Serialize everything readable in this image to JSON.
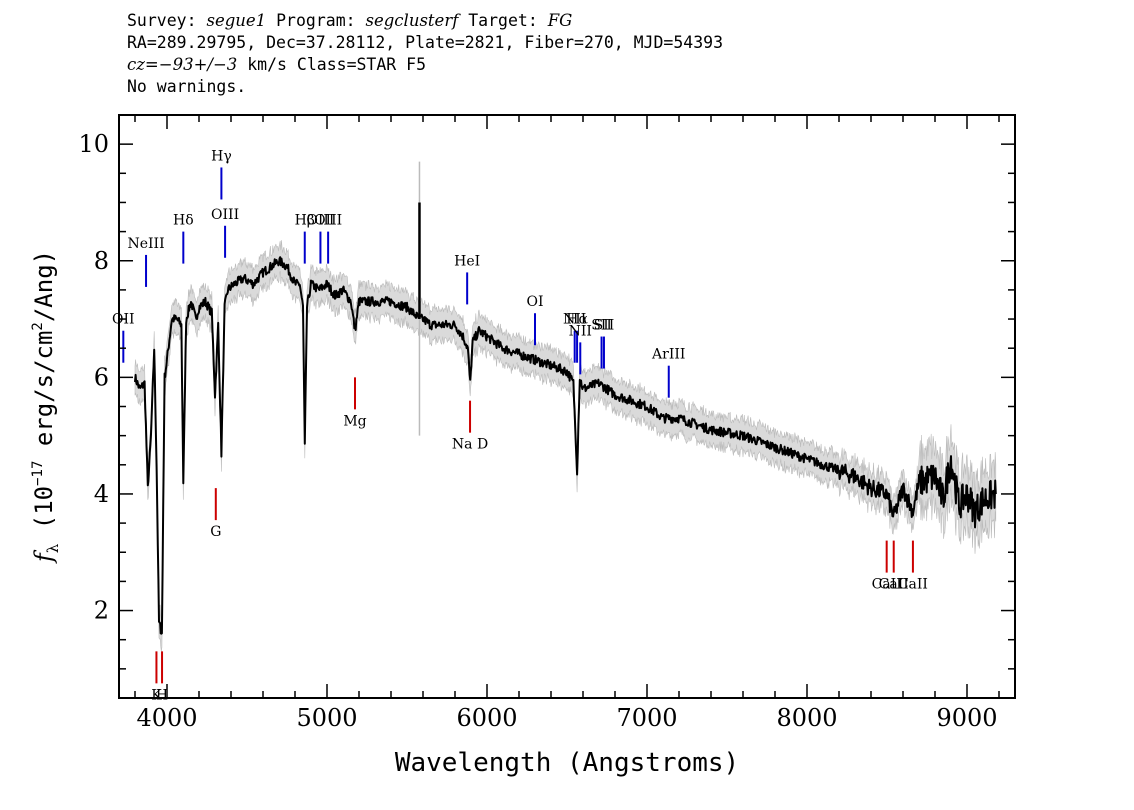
{
  "header": {
    "line1": {
      "survey_label": "Survey: ",
      "survey": "segue1",
      "program_label": " Program: ",
      "program": "segclusterf",
      "target_label": " Target: ",
      "target": "FG"
    },
    "line2": "RA=289.29795, Dec=37.28112, Plate=2821, Fiber=270, MJD=54393",
    "line3": {
      "cz": "cz=−93+/−3",
      "rest": " km/s Class=STAR F5"
    },
    "line4": "No warnings."
  },
  "chart_data": {
    "type": "line",
    "xlabel": "Wavelength (Angstroms)",
    "ylabel": "f_λ (10^-17 erg/s/cm^2/Ang)",
    "ylabel_parts": {
      "f": "f",
      "sub": "λ",
      "pre": " (10",
      "exp": "−17",
      "mid": " erg/s/cm",
      "exp2": "2",
      "post": "/Ang)"
    },
    "xlim": [
      3700,
      9300
    ],
    "ylim": [
      0.5,
      10.5
    ],
    "xticks": [
      4000,
      5000,
      6000,
      7000,
      8000,
      9000
    ],
    "yticks": [
      2,
      4,
      6,
      8,
      10
    ],
    "xtick_labels": [
      "4000",
      "5000",
      "6000",
      "7000",
      "8000",
      "9000"
    ],
    "ytick_labels": [
      "2",
      "4",
      "6",
      "8",
      "10"
    ],
    "grid": false,
    "series": [
      {
        "style": "flux",
        "color": "#000000",
        "error_color": "#bbbbbb",
        "x": [
          3800,
          3830,
          3860,
          3880,
          3900,
          3920,
          3935,
          3950,
          3968,
          3985,
          4000,
          4030,
          4060,
          4090,
          4102,
          4120,
          4150,
          4180,
          4200,
          4240,
          4280,
          4300,
          4320,
          4340,
          4360,
          4380,
          4420,
          4480,
          4540,
          4600,
          4650,
          4700,
          4750,
          4800,
          4830,
          4850,
          4861,
          4875,
          4900,
          4950,
          5000,
          5050,
          5100,
          5150,
          5175,
          5200,
          5250,
          5300,
          5400,
          5500,
          5580,
          5600,
          5650,
          5700,
          5800,
          5850,
          5880,
          5895,
          5910,
          5950,
          6000,
          6100,
          6200,
          6300,
          6400,
          6500,
          6540,
          6563,
          6580,
          6600,
          6700,
          6800,
          6900,
          7000,
          7100,
          7200,
          7400,
          7600,
          7800,
          8000,
          8200,
          8300,
          8400,
          8498,
          8542,
          8600,
          8662,
          8700,
          8800,
          8850,
          8900,
          8950,
          9000,
          9050,
          9100,
          9180
        ],
        "y": [
          6.0,
          5.8,
          5.9,
          4.1,
          5.0,
          6.5,
          4.5,
          1.8,
          1.6,
          6.0,
          6.3,
          7.0,
          7.0,
          6.9,
          4.2,
          7.0,
          7.3,
          7.0,
          7.2,
          7.3,
          7.1,
          5.7,
          6.9,
          4.7,
          7.2,
          7.5,
          7.6,
          7.7,
          7.6,
          7.8,
          7.9,
          8.0,
          7.9,
          7.6,
          7.6,
          7.2,
          4.8,
          7.2,
          7.6,
          7.5,
          7.6,
          7.4,
          7.5,
          7.3,
          6.8,
          7.3,
          7.3,
          7.3,
          7.3,
          7.2,
          7.0,
          7.0,
          6.9,
          6.9,
          6.9,
          6.7,
          6.5,
          5.9,
          6.6,
          6.8,
          6.7,
          6.5,
          6.4,
          6.3,
          6.2,
          6.1,
          5.9,
          4.4,
          6.0,
          5.8,
          5.9,
          5.7,
          5.6,
          5.5,
          5.3,
          5.3,
          5.1,
          5.0,
          4.8,
          4.6,
          4.4,
          4.3,
          4.1,
          4.0,
          3.6,
          4.1,
          3.7,
          4.2,
          4.3,
          3.9,
          4.6,
          3.8,
          4.0,
          3.7,
          3.9,
          4.0
        ]
      }
    ],
    "emission_lines": [
      {
        "label": "OII",
        "wavelength": 3727,
        "flux": 6.8
      },
      {
        "label": "NeIII",
        "wavelength": 3869,
        "flux": 8.1
      },
      {
        "label": "Hδ",
        "wavelength": 4102,
        "flux": 8.5
      },
      {
        "label": "Hγ",
        "wavelength": 4340,
        "flux": 9.6
      },
      {
        "label": "OIII",
        "wavelength": 4363,
        "flux": 8.6
      },
      {
        "label": "Hβ",
        "wavelength": 4861,
        "flux": 8.5
      },
      {
        "label": "OIII",
        "wavelength": 4959,
        "flux": 8.5
      },
      {
        "label": "OIII",
        "wavelength": 5007,
        "flux": 8.5
      },
      {
        "label": "HeI",
        "wavelength": 5876,
        "flux": 7.8
      },
      {
        "label": "OI",
        "wavelength": 6300,
        "flux": 7.1
      },
      {
        "label": "NII",
        "wavelength": 6548,
        "flux": 6.8
      },
      {
        "label": "Hα",
        "wavelength": 6563,
        "flux": 6.8
      },
      {
        "label": "NII",
        "wavelength": 6583,
        "flux": 6.6
      },
      {
        "label": "SII",
        "wavelength": 6716,
        "flux": 6.7
      },
      {
        "label": "SII",
        "wavelength": 6731,
        "flux": 6.7
      },
      {
        "label": "ArIII",
        "wavelength": 7136,
        "flux": 6.2
      }
    ],
    "absorption_lines": [
      {
        "label": "K",
        "wavelength": 3934,
        "flux": 1.3
      },
      {
        "label": "H",
        "wavelength": 3969,
        "flux": 1.3
      },
      {
        "label": "G",
        "wavelength": 4305,
        "flux": 4.1
      },
      {
        "label": "Mg",
        "wavelength": 5175,
        "flux": 6.0
      },
      {
        "label": "Na D",
        "wavelength": 5894,
        "flux": 5.6
      },
      {
        "label": "CaII",
        "wavelength": 8498,
        "flux": 3.2
      },
      {
        "label": "CaII",
        "wavelength": 8542,
        "flux": 3.2
      },
      {
        "label": "CaII",
        "wavelength": 8662,
        "flux": 3.2
      }
    ],
    "line_colors": {
      "emission": "#0000cc",
      "absorption": "#cc0000"
    }
  }
}
